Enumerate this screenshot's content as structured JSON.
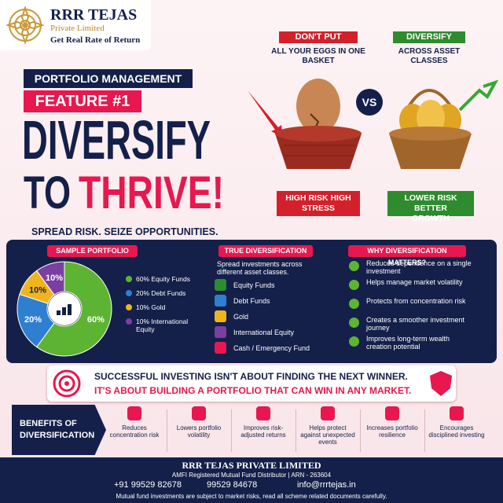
{
  "header": {
    "brand": "RRR TEJAS",
    "subbrand": "Private Limited",
    "tagline": "Get Real Rate of Return"
  },
  "hero": {
    "kicker": "PORTFOLIO MANAGEMENT",
    "feature": "FEATURE #1",
    "title_line1": "DIVERSIFY",
    "title_to": "TO",
    "title_thrive": "THRIVE!",
    "tagline": "SPREAD RISK. SEIZE OPPORTUNITIES."
  },
  "compare": {
    "left": {
      "badge": "DON'T PUT",
      "text": "ALL YOUR EGGS IN ONE BASKET",
      "result": "HIGH RISK HIGH STRESS"
    },
    "vs": "VS",
    "right": {
      "badge": "DIVERSIFY",
      "text": "ACROSS ASSET CLASSES",
      "result": "LOWER RISK BETTER GROWTH"
    }
  },
  "sample_portfolio": {
    "title": "SAMPLE PORTFOLIO",
    "values": [
      60,
      20,
      10,
      10
    ],
    "value_labels": [
      "60%",
      "20%",
      "10%",
      "10%"
    ],
    "colors": [
      "#5db432",
      "#2f7fd0",
      "#f0b51e",
      "#7a3fa0"
    ],
    "legend": [
      "60% Equity Funds",
      "20% Debt Funds",
      "10% Gold",
      "10% International Equity"
    ]
  },
  "true_diversification": {
    "title": "TRUE DIVERSIFICATION",
    "intro": "Spread investments across different asset classes.",
    "items": [
      "Equity Funds",
      "Debt Funds",
      "Gold",
      "International Equity",
      "Cash / Emergency Fund"
    ]
  },
  "why": {
    "title": "WHY DIVERSIFICATION MATTERS?",
    "items": [
      "Reduces dependence on a single investment",
      "Helps manage market volatility",
      "Protects from concentration risk",
      "Creates a smoother investment journey",
      "Improves long-term wealth creation potential"
    ]
  },
  "banner": {
    "line1": "SUCCESSFUL INVESTING ISN'T ABOUT FINDING THE NEXT WINNER.",
    "line2": "IT'S ABOUT BUILDING A PORTFOLIO THAT CAN WIN IN ANY MARKET."
  },
  "benefits": {
    "title": "BENEFITS OF DIVERSIFICATION",
    "items": [
      "Reduces concentration risk",
      "Lowers portfolio volatility",
      "Improves risk-adjusted returns",
      "Helps protect against unexpected events",
      "Increases portfolio resilience",
      "Encourages disciplined investing"
    ]
  },
  "footer": {
    "company": "RRR TEJAS PRIVATE LIMITED",
    "registration": "AMFI Registered Mutual Fund Distributor | ARN - 263604",
    "phone1": "+91 99529 82678",
    "phone2": "99529 84678",
    "email": "info@rrrtejas.in",
    "disclaimer": "Mutual fund investments are subject to market risks, read all scheme related documents carefully."
  }
}
